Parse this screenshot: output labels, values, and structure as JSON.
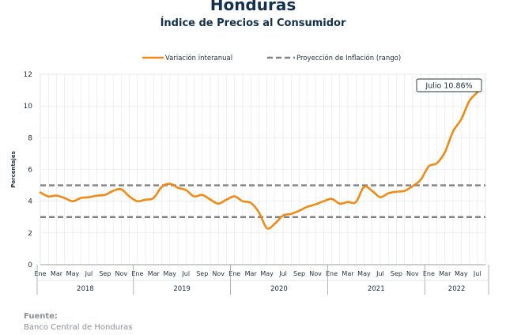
{
  "title": "Honduras",
  "subtitle": "Índice de Precios al Consumidor",
  "source": {
    "label": "Fuente:",
    "text": "Banco Central de Honduras"
  },
  "colors": {
    "series": "#f18a12",
    "band": "#808080",
    "axis": "#9aa0a6",
    "text": "#1f2d3d"
  },
  "chart_data": {
    "type": "line",
    "ylabel": "Porcentajes",
    "xlabel": "",
    "ylim": [
      0,
      12
    ],
    "yticks": [
      0,
      2,
      4,
      6,
      8,
      10,
      12
    ],
    "grid": true,
    "legend_position": "top-center",
    "month_labels": [
      "Ene",
      "Mar",
      "May",
      "Jul",
      "Sep",
      "Nov",
      "Ene",
      "Mar",
      "May",
      "Jul",
      "Sep",
      "Nov",
      "Ene",
      "Mar",
      "May",
      "Jul",
      "Sep",
      "Nov",
      "Ene",
      "Mar",
      "May",
      "Jul",
      "Sep",
      "Nov",
      "Ene",
      "Mar",
      "May",
      "Jul"
    ],
    "years": [
      "2018",
      "2019",
      "2020",
      "2021",
      "2022"
    ],
    "series": [
      {
        "name": "Variación interanual",
        "style": "solid",
        "x": [
          "2018-01",
          "2018-02",
          "2018-03",
          "2018-04",
          "2018-05",
          "2018-06",
          "2018-07",
          "2018-08",
          "2018-09",
          "2018-10",
          "2018-11",
          "2018-12",
          "2019-01",
          "2019-02",
          "2019-03",
          "2019-04",
          "2019-05",
          "2019-06",
          "2019-07",
          "2019-08",
          "2019-09",
          "2019-10",
          "2019-11",
          "2019-12",
          "2020-01",
          "2020-02",
          "2020-03",
          "2020-04",
          "2020-05",
          "2020-06",
          "2020-07",
          "2020-08",
          "2020-09",
          "2020-10",
          "2020-11",
          "2020-12",
          "2021-01",
          "2021-02",
          "2021-03",
          "2021-04",
          "2021-05",
          "2021-06",
          "2021-07",
          "2021-08",
          "2021-09",
          "2021-10",
          "2021-11",
          "2021-12",
          "2022-01",
          "2022-02",
          "2022-03",
          "2022-04",
          "2022-05",
          "2022-06",
          "2022-07"
        ],
        "values": [
          4.55,
          4.3,
          4.35,
          4.2,
          4.0,
          4.2,
          4.25,
          4.35,
          4.4,
          4.65,
          4.75,
          4.3,
          4.0,
          4.1,
          4.2,
          4.9,
          5.1,
          4.85,
          4.7,
          4.3,
          4.4,
          4.1,
          3.85,
          4.1,
          4.3,
          4.0,
          3.9,
          3.3,
          2.3,
          2.6,
          3.1,
          3.2,
          3.4,
          3.65,
          3.8,
          4.0,
          4.15,
          3.85,
          3.95,
          3.95,
          4.9,
          4.65,
          4.25,
          4.5,
          4.6,
          4.65,
          4.95,
          5.35,
          6.2,
          6.4,
          7.1,
          8.4,
          9.15,
          10.3,
          10.86
        ]
      },
      {
        "name": "Proyección de Inflación (rango)",
        "style": "dashed",
        "values": [
          3,
          5
        ]
      }
    ],
    "annotations": [
      {
        "text": "Julio 10.86%",
        "x": "2022-07",
        "y": 10.86
      }
    ]
  }
}
